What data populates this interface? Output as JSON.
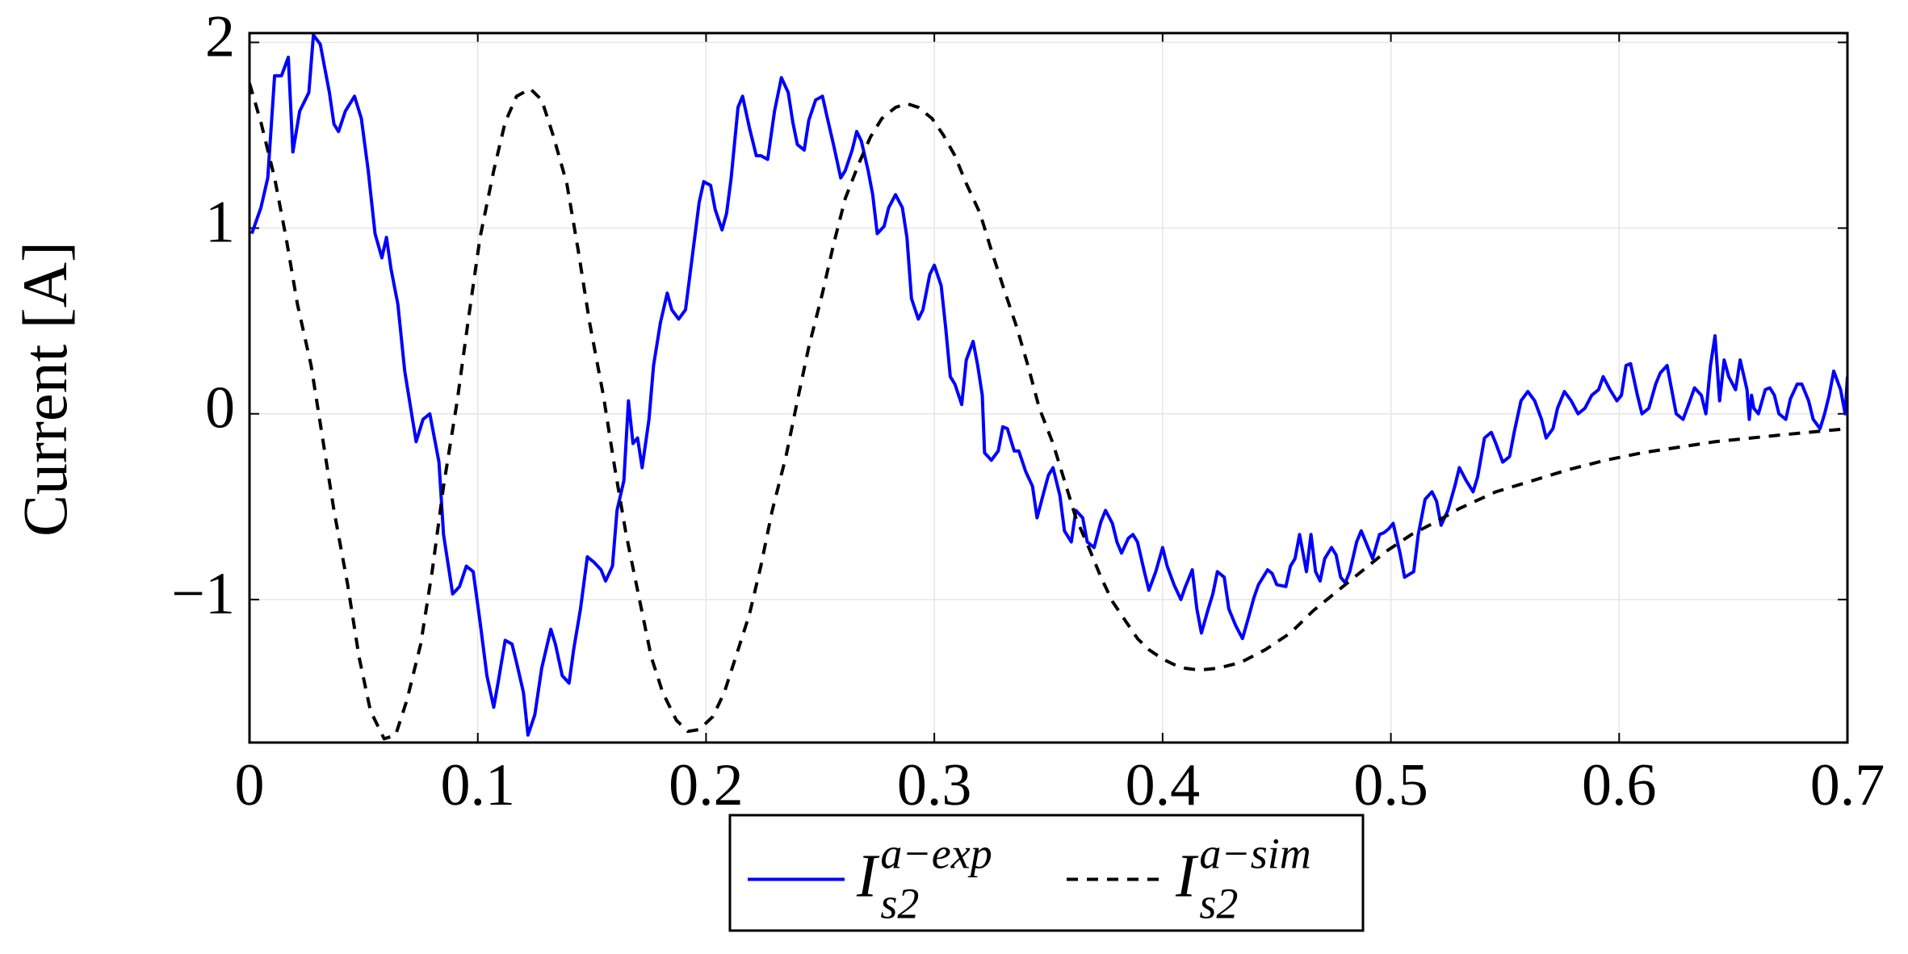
{
  "chart_data": {
    "type": "line",
    "y_label": "Current [A]",
    "xlim": [
      0,
      0.7
    ],
    "ylim": [
      -1.77,
      2.05
    ],
    "xticks": [
      0,
      0.1,
      0.2,
      0.3,
      0.4,
      0.5,
      0.6,
      0.7
    ],
    "yticks": [
      -1,
      0,
      1,
      2
    ],
    "grid": true,
    "legend": "bottom",
    "series": [
      {
        "name": "I_{s2}^{a-exp}",
        "color": "#0000ff",
        "style": "solid",
        "x": [
          0.001,
          0.005,
          0.008,
          0.011,
          0.014,
          0.017,
          0.019,
          0.022,
          0.026,
          0.028,
          0.031,
          0.035,
          0.037,
          0.039,
          0.042,
          0.046,
          0.049,
          0.052,
          0.055,
          0.058,
          0.06,
          0.062,
          0.065,
          0.068,
          0.073,
          0.076,
          0.079,
          0.083,
          0.085,
          0.089,
          0.092,
          0.095,
          0.098,
          0.101,
          0.104,
          0.107,
          0.109,
          0.112,
          0.115,
          0.117,
          0.12,
          0.122,
          0.125,
          0.128,
          0.132,
          0.134,
          0.137,
          0.14,
          0.142,
          0.145,
          0.148,
          0.151,
          0.154,
          0.156,
          0.159,
          0.161,
          0.164,
          0.166,
          0.168,
          0.17,
          0.172,
          0.175,
          0.177,
          0.18,
          0.183,
          0.185,
          0.188,
          0.191,
          0.194,
          0.197,
          0.199,
          0.202,
          0.204,
          0.207,
          0.209,
          0.211,
          0.214,
          0.216,
          0.219,
          0.222,
          0.224,
          0.227,
          0.23,
          0.233,
          0.236,
          0.238,
          0.24,
          0.243,
          0.245,
          0.248,
          0.251,
          0.253,
          0.256,
          0.259,
          0.261,
          0.264,
          0.266,
          0.268,
          0.271,
          0.273,
          0.275,
          0.278,
          0.28,
          0.283,
          0.286,
          0.288,
          0.29,
          0.293,
          0.295,
          0.298,
          0.3,
          0.303,
          0.305,
          0.307,
          0.309,
          0.312,
          0.314,
          0.317,
          0.319,
          0.321,
          0.322,
          0.325,
          0.328,
          0.33,
          0.332,
          0.335,
          0.337,
          0.34,
          0.343,
          0.345,
          0.348,
          0.35,
          0.352,
          0.355,
          0.357,
          0.36,
          0.362,
          0.365,
          0.367,
          0.37,
          0.373,
          0.375,
          0.378,
          0.38,
          0.382,
          0.385,
          0.387,
          0.389,
          0.392,
          0.394,
          0.397,
          0.4,
          0.402,
          0.405,
          0.408,
          0.41,
          0.413,
          0.415,
          0.417,
          0.42,
          0.422,
          0.424,
          0.427,
          0.429,
          0.432,
          0.435,
          0.438,
          0.44,
          0.442,
          0.446,
          0.448,
          0.45,
          0.454,
          0.456,
          0.458,
          0.46,
          0.463,
          0.465,
          0.467,
          0.469,
          0.471,
          0.474,
          0.476,
          0.478,
          0.48,
          0.482,
          0.485,
          0.487,
          0.49,
          0.492,
          0.495,
          0.497,
          0.499,
          0.501,
          0.504,
          0.506,
          0.51,
          0.512,
          0.515,
          0.518,
          0.52,
          0.522,
          0.525,
          0.528,
          0.53,
          0.533,
          0.536,
          0.538,
          0.541,
          0.544,
          0.546,
          0.549,
          0.552,
          0.554,
          0.557,
          0.56,
          0.563,
          0.566,
          0.568,
          0.571,
          0.573,
          0.576,
          0.579,
          0.582,
          0.585,
          0.588,
          0.591,
          0.593,
          0.596,
          0.599,
          0.601,
          0.603,
          0.605,
          0.608,
          0.61,
          0.613,
          0.616,
          0.618,
          0.621,
          0.623,
          0.625,
          0.628,
          0.631,
          0.633,
          0.636,
          0.638,
          0.64,
          0.642,
          0.644,
          0.646,
          0.648,
          0.651,
          0.653,
          0.656,
          0.657,
          0.658,
          0.659,
          0.661,
          0.664,
          0.666,
          0.668,
          0.67,
          0.673,
          0.675,
          0.678,
          0.68,
          0.683,
          0.685,
          0.688,
          0.69,
          0.692,
          0.694,
          0.697,
          0.699,
          0.7
        ],
        "values": [
          0.97,
          1.11,
          1.27,
          1.82,
          1.82,
          1.92,
          1.41,
          1.63,
          1.73,
          2.04,
          1.99,
          1.73,
          1.56,
          1.52,
          1.63,
          1.71,
          1.59,
          1.31,
          0.97,
          0.84,
          0.95,
          0.78,
          0.59,
          0.23,
          -0.15,
          -0.03,
          0.0,
          -0.26,
          -0.65,
          -0.97,
          -0.93,
          -0.82,
          -0.85,
          -1.12,
          -1.41,
          -1.58,
          -1.44,
          -1.22,
          -1.24,
          -1.34,
          -1.5,
          -1.73,
          -1.62,
          -1.37,
          -1.16,
          -1.24,
          -1.41,
          -1.45,
          -1.27,
          -1.05,
          -0.77,
          -0.8,
          -0.84,
          -0.9,
          -0.82,
          -0.52,
          -0.36,
          0.07,
          -0.16,
          -0.13,
          -0.29,
          -0.03,
          0.26,
          0.49,
          0.65,
          0.56,
          0.51,
          0.56,
          0.85,
          1.14,
          1.25,
          1.23,
          1.1,
          0.99,
          1.08,
          1.27,
          1.65,
          1.71,
          1.54,
          1.39,
          1.39,
          1.37,
          1.63,
          1.81,
          1.73,
          1.57,
          1.45,
          1.42,
          1.58,
          1.69,
          1.71,
          1.6,
          1.44,
          1.27,
          1.31,
          1.42,
          1.52,
          1.47,
          1.31,
          1.18,
          0.97,
          1.01,
          1.11,
          1.18,
          1.11,
          0.95,
          0.62,
          0.51,
          0.56,
          0.75,
          0.8,
          0.69,
          0.46,
          0.2,
          0.16,
          0.05,
          0.29,
          0.39,
          0.26,
          0.1,
          -0.21,
          -0.25,
          -0.2,
          -0.07,
          -0.08,
          -0.2,
          -0.2,
          -0.31,
          -0.39,
          -0.56,
          -0.42,
          -0.33,
          -0.29,
          -0.44,
          -0.63,
          -0.69,
          -0.52,
          -0.56,
          -0.69,
          -0.72,
          -0.58,
          -0.52,
          -0.59,
          -0.69,
          -0.75,
          -0.67,
          -0.65,
          -0.69,
          -0.85,
          -0.95,
          -0.85,
          -0.72,
          -0.82,
          -0.92,
          -1.0,
          -0.93,
          -0.84,
          -1.05,
          -1.18,
          -1.05,
          -0.97,
          -0.85,
          -0.88,
          -1.05,
          -1.14,
          -1.21,
          -1.08,
          -0.99,
          -0.92,
          -0.84,
          -0.86,
          -0.92,
          -0.93,
          -0.82,
          -0.78,
          -0.65,
          -0.85,
          -0.65,
          -0.85,
          -0.9,
          -0.78,
          -0.72,
          -0.76,
          -0.88,
          -0.91,
          -0.85,
          -0.69,
          -0.63,
          -0.72,
          -0.78,
          -0.65,
          -0.64,
          -0.62,
          -0.59,
          -0.75,
          -0.88,
          -0.85,
          -0.65,
          -0.46,
          -0.42,
          -0.47,
          -0.6,
          -0.52,
          -0.39,
          -0.29,
          -0.36,
          -0.42,
          -0.34,
          -0.13,
          -0.1,
          -0.16,
          -0.26,
          -0.23,
          -0.1,
          0.07,
          0.12,
          0.07,
          -0.03,
          -0.13,
          -0.08,
          0.03,
          0.12,
          0.07,
          0.0,
          0.03,
          0.1,
          0.13,
          0.2,
          0.13,
          0.07,
          0.1,
          0.26,
          0.27,
          0.1,
          0.0,
          0.03,
          0.16,
          0.22,
          0.26,
          0.13,
          0.0,
          -0.03,
          0.07,
          0.14,
          0.1,
          0.0,
          0.26,
          0.42,
          0.07,
          0.29,
          0.2,
          0.13,
          0.29,
          0.13,
          -0.03,
          0.1,
          0.03,
          0.0,
          0.13,
          0.14,
          0.1,
          0.0,
          -0.03,
          0.08,
          0.16,
          0.16,
          0.07,
          -0.03,
          -0.08,
          0.0,
          0.1,
          0.23,
          0.13,
          0.0,
          0.2
        ]
      },
      {
        "name": "I_{s2}^{a-sim}",
        "color": "#000000",
        "style": "dashed",
        "x": [
          0,
          0.005,
          0.011,
          0.016,
          0.021,
          0.027,
          0.032,
          0.037,
          0.043,
          0.048,
          0.053,
          0.059,
          0.064,
          0.069,
          0.075,
          0.08,
          0.085,
          0.091,
          0.096,
          0.101,
          0.107,
          0.112,
          0.117,
          0.123,
          0.128,
          0.133,
          0.139,
          0.144,
          0.149,
          0.155,
          0.16,
          0.165,
          0.171,
          0.176,
          0.181,
          0.187,
          0.192,
          0.197,
          0.203,
          0.208,
          0.213,
          0.219,
          0.224,
          0.229,
          0.235,
          0.24,
          0.245,
          0.251,
          0.256,
          0.261,
          0.267,
          0.272,
          0.277,
          0.283,
          0.288,
          0.293,
          0.299,
          0.304,
          0.309,
          0.314,
          0.32,
          0.325,
          0.33,
          0.336,
          0.341,
          0.346,
          0.352,
          0.357,
          0.362,
          0.368,
          0.373,
          0.378,
          0.384,
          0.389,
          0.394,
          0.4,
          0.405,
          0.41,
          0.416,
          0.424,
          0.434,
          0.445,
          0.456,
          0.466,
          0.477,
          0.488,
          0.498,
          0.509,
          0.52,
          0.53,
          0.546,
          0.562,
          0.578,
          0.594,
          0.61,
          0.626,
          0.642,
          0.658,
          0.674,
          0.7
        ],
        "values": [
          1.78,
          1.57,
          1.27,
          0.95,
          0.59,
          0.26,
          -0.13,
          -0.52,
          -0.92,
          -1.31,
          -1.6,
          -1.75,
          -1.73,
          -1.54,
          -1.24,
          -0.85,
          -0.39,
          0.07,
          0.52,
          0.95,
          1.31,
          1.57,
          1.71,
          1.75,
          1.69,
          1.5,
          1.24,
          0.88,
          0.49,
          0.1,
          -0.29,
          -0.65,
          -1.01,
          -1.31,
          -1.5,
          -1.65,
          -1.71,
          -1.7,
          -1.63,
          -1.5,
          -1.31,
          -1.08,
          -0.82,
          -0.52,
          -0.23,
          0.07,
          0.36,
          0.65,
          0.92,
          1.16,
          1.35,
          1.49,
          1.59,
          1.65,
          1.67,
          1.65,
          1.59,
          1.5,
          1.39,
          1.24,
          1.08,
          0.88,
          0.69,
          0.47,
          0.26,
          0.03,
          -0.16,
          -0.36,
          -0.56,
          -0.73,
          -0.88,
          -1.01,
          -1.12,
          -1.21,
          -1.27,
          -1.32,
          -1.35,
          -1.37,
          -1.38,
          -1.37,
          -1.34,
          -1.27,
          -1.18,
          -1.06,
          -0.95,
          -0.84,
          -0.74,
          -0.65,
          -0.58,
          -0.51,
          -0.42,
          -0.36,
          -0.3,
          -0.25,
          -0.21,
          -0.18,
          -0.15,
          -0.13,
          -0.11,
          -0.08
        ]
      }
    ]
  }
}
